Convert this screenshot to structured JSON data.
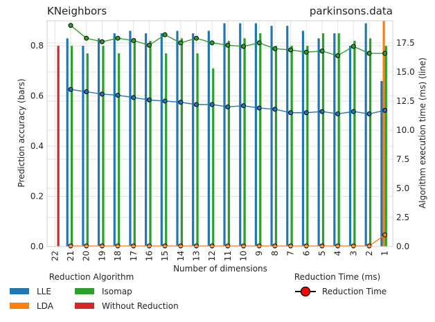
{
  "chart_data": {
    "type": "bar",
    "title_left": "KNeighbors",
    "title_right": "parkinsons.data",
    "xlabel": "Number of dimensions",
    "ylabel_left": "Prediction accuracy (bars)",
    "ylabel_right": "Algorithm execution time (ms) (line)",
    "categories": [
      "22",
      "21",
      "20",
      "19",
      "18",
      "17",
      "16",
      "15",
      "14",
      "13",
      "12",
      "11",
      "10",
      "9",
      "8",
      "7",
      "6",
      "5",
      "4",
      "3",
      "2",
      "1"
    ],
    "ylim_left": [
      0,
      0.9
    ],
    "yticks_left": [
      "0.0",
      "0.2",
      "0.4",
      "0.6",
      "0.8"
    ],
    "ylim_right": [
      0,
      19.4
    ],
    "yticks_right": [
      "0.0",
      "2.5",
      "5.0",
      "7.5",
      "10.0",
      "12.5",
      "15.0",
      "17.5"
    ],
    "grid": true,
    "series": [
      {
        "name": "LLE",
        "color": "#1f77b4",
        "values": [
          null,
          0.83,
          0.8,
          0.83,
          0.85,
          0.86,
          0.85,
          0.85,
          0.86,
          0.85,
          0.86,
          0.89,
          0.89,
          0.89,
          0.88,
          0.88,
          0.86,
          0.83,
          0.85,
          0.8,
          0.89,
          0.66
        ]
      },
      {
        "name": "LDA",
        "color": "#ff7f0e",
        "values": [
          null,
          null,
          null,
          null,
          null,
          null,
          null,
          null,
          null,
          null,
          null,
          null,
          null,
          null,
          null,
          null,
          null,
          null,
          null,
          null,
          null,
          0.9
        ]
      },
      {
        "name": "Isomap",
        "color": "#2ca02c",
        "values": [
          null,
          0.8,
          0.77,
          0.8,
          0.77,
          0.83,
          0.82,
          0.77,
          0.83,
          0.77,
          0.71,
          0.82,
          0.83,
          0.85,
          0.8,
          0.8,
          0.8,
          0.85,
          0.85,
          0.82,
          0.83,
          0.8
        ]
      },
      {
        "name": "Without Reduction",
        "color": "#d62728",
        "values": [
          0.8,
          null,
          null,
          null,
          null,
          null,
          null,
          null,
          null,
          null,
          null,
          null,
          null,
          null,
          null,
          null,
          null,
          null,
          null,
          null,
          null,
          null
        ]
      }
    ],
    "lines": [
      {
        "series": "LLE",
        "color": "#1f77b4",
        "values": [
          null,
          13.5,
          13.3,
          13.1,
          13.0,
          12.8,
          12.6,
          12.5,
          12.4,
          12.2,
          12.2,
          12.0,
          12.1,
          11.9,
          11.8,
          11.5,
          11.5,
          11.6,
          11.4,
          11.6,
          11.4,
          11.7
        ]
      },
      {
        "series": "Isomap",
        "color": "#2ca02c",
        "values": [
          null,
          19.0,
          17.9,
          17.6,
          17.9,
          17.7,
          17.3,
          18.2,
          17.5,
          17.9,
          17.5,
          17.3,
          17.2,
          17.5,
          17.0,
          16.9,
          16.7,
          16.8,
          16.4,
          17.2,
          16.6,
          16.6
        ]
      },
      {
        "series": "LDA",
        "color": "#ff7f0e",
        "values": [
          null,
          0.05,
          0.05,
          0.05,
          0.05,
          0.05,
          0.05,
          0.05,
          0.05,
          0.05,
          0.05,
          0.05,
          0.05,
          0.05,
          0.05,
          0.05,
          0.05,
          0.05,
          0.05,
          0.05,
          0.05,
          1.0
        ]
      }
    ],
    "legend_left": {
      "title": "Reduction Algorithm",
      "items": [
        {
          "label": "LLE",
          "color": "#1f77b4"
        },
        {
          "label": "Isomap",
          "color": "#2ca02c"
        },
        {
          "label": "LDA",
          "color": "#ff7f0e"
        },
        {
          "label": "Without Reduction",
          "color": "#d62728"
        }
      ]
    },
    "legend_right": {
      "title": "Reduction Time (ms)",
      "items": [
        {
          "label": "Reduction Time",
          "color": "#ff0000"
        }
      ]
    }
  }
}
